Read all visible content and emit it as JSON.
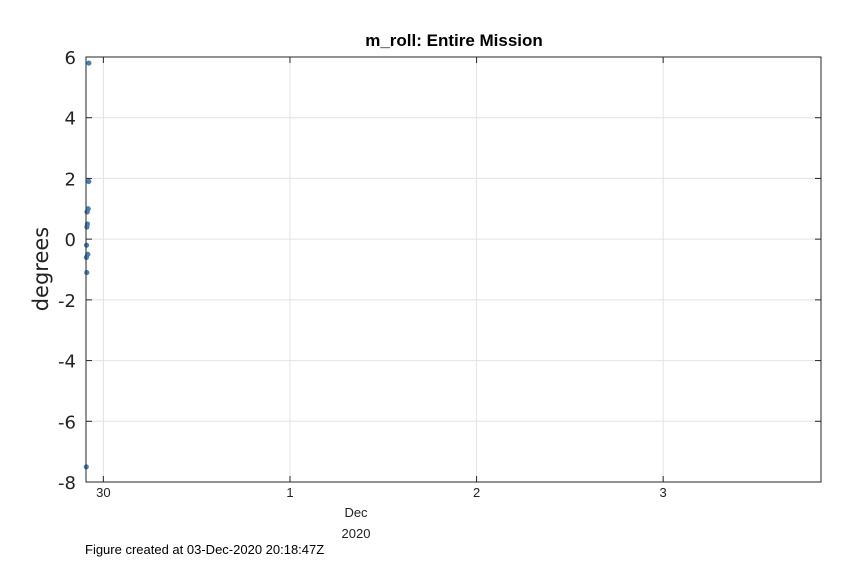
{
  "chart_data": {
    "type": "scatter",
    "title": "m_roll: Entire Mission",
    "ylabel": "degrees",
    "xlabel": "",
    "x_axis_kind": "date",
    "xlim": [
      "2020-11-29T21:46:00Z",
      "2020-12-03T20:18:00Z"
    ],
    "ylim": [
      -8,
      6
    ],
    "yticks": [
      6,
      4,
      2,
      0,
      -2,
      -4,
      -6,
      -8
    ],
    "xticks": [
      {
        "date": "2020-11-30",
        "label": "30"
      },
      {
        "date": "2020-12-01",
        "label": "1"
      },
      {
        "date": "2020-12-02",
        "label": "2"
      },
      {
        "date": "2020-12-03",
        "label": "3"
      }
    ],
    "x_secondary_label": {
      "month": "Dec",
      "year": "2020"
    },
    "grid": true,
    "marker_color": "#4a7fb0",
    "series": [
      {
        "name": "",
        "points": [
          {
            "x": "2020-11-29T21:48:00Z",
            "y": -7.5
          },
          {
            "x": "2020-11-29T21:49:00Z",
            "y": -0.6
          },
          {
            "x": "2020-11-29T21:50:00Z",
            "y": -0.2
          },
          {
            "x": "2020-11-29T21:52:00Z",
            "y": -1.1
          },
          {
            "x": "2020-11-29T21:53:00Z",
            "y": 0.4
          },
          {
            "x": "2020-11-29T21:54:00Z",
            "y": 0.9
          },
          {
            "x": "2020-11-29T21:55:00Z",
            "y": 0.9
          },
          {
            "x": "2020-11-29T21:57:00Z",
            "y": 0.5
          },
          {
            "x": "2020-11-29T21:59:00Z",
            "y": -0.5
          },
          {
            "x": "2020-11-29T22:00:00Z",
            "y": -0.5
          },
          {
            "x": "2020-11-29T22:03:00Z",
            "y": 1.0
          },
          {
            "x": "2020-11-29T22:06:00Z",
            "y": 1.9
          },
          {
            "x": "2020-11-29T22:07:00Z",
            "y": 1.9
          },
          {
            "x": "2020-11-29T22:08:00Z",
            "y": 5.8
          }
        ]
      }
    ]
  },
  "footer": "Figure created at 03-Dec-2020 20:18:47Z"
}
